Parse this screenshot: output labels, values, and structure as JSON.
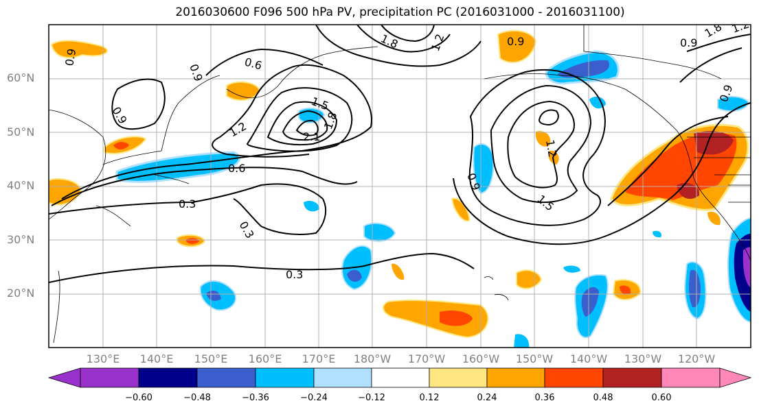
{
  "figure": {
    "title": "2016030600 F096 500 hPa PV, precipitation PC (2016031000 - 2016031100)"
  },
  "map": {
    "region": "North Pacific",
    "lat_labels": [
      "60°N",
      "50°N",
      "40°N",
      "30°N",
      "20°N"
    ],
    "lon_labels": [
      "130°E",
      "140°E",
      "150°E",
      "160°E",
      "170°E",
      "180°W",
      "170°W",
      "160°W",
      "150°W",
      "140°W",
      "130°W",
      "120°W"
    ],
    "gridlines": true
  },
  "contours": {
    "field": "500 hPa PV",
    "labels": [
      "0.9",
      "0.6",
      "0.9",
      "0.9",
      "1.2",
      "1.5",
      "1.8",
      "2.1",
      "0.6",
      "0.3",
      "0.3",
      "0.3",
      "1.8",
      "1.2",
      "0.9",
      "1.2",
      "0.9",
      "1.5",
      "1.8",
      "0.9",
      "0.9",
      "1.2"
    ]
  },
  "colorbar": {
    "field": "precipitation PC",
    "tick_labels": [
      "−0.60",
      "−0.48",
      "−0.36",
      "−0.24",
      "−0.12",
      "0.12",
      "0.24",
      "0.36",
      "0.48",
      "0.60"
    ],
    "colors": [
      "#9932cc",
      "#00008b",
      "#3a5fcd",
      "#00bfff",
      "#b0e0ff",
      "#ffffff",
      "#ffe680",
      "#ffa500",
      "#ff4500",
      "#b22222",
      "#ff88b8"
    ]
  }
}
